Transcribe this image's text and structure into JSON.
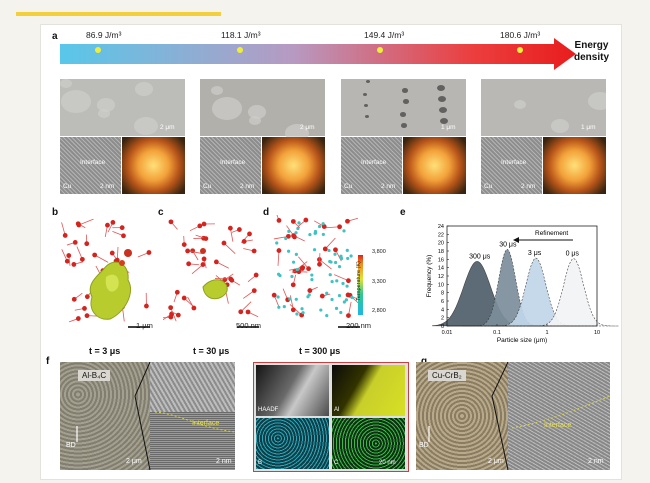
{
  "panel_a": {
    "label": "a",
    "energies": [
      "86.9 J/m³",
      "118.1 J/m³",
      "149.4 J/m³",
      "180.6 J/m³"
    ],
    "arrow_label_1": "Energy",
    "arrow_label_2": "density",
    "sem_scale": [
      "2 μm",
      "2 μm",
      "1 μm",
      "1 μm"
    ],
    "tem_labels": {
      "cu": "Cu",
      "interface": "Interface",
      "scale": "2 nm"
    }
  },
  "panel_b": {
    "label": "b",
    "scale": "1 μm",
    "time": "t = 3 μs"
  },
  "panel_c": {
    "label": "c",
    "scale": "500 nm",
    "time": "t = 30 μs"
  },
  "panel_d": {
    "label": "d",
    "scale": "200 nm",
    "time": "t = 300 μs",
    "colorbar_title": "Temperature (K)",
    "colorbar_ticks": [
      "3,800",
      "3,300",
      "2,800"
    ]
  },
  "panel_e": {
    "label": "e",
    "refinement": "Refinement",
    "ylabel": "Frequency (%)",
    "xlabel": "Particle size (μm)",
    "peak_labels": [
      "300 μs",
      "30 μs",
      "3 μs",
      "0 μs"
    ]
  },
  "chart_data": {
    "type": "area",
    "xlabel": "Particle size (μm)",
    "ylabel": "Frequency (%)",
    "xscale": "log",
    "xlim": [
      0.01,
      10
    ],
    "ylim": [
      0,
      24
    ],
    "xticks": [
      "0.01",
      "0.1",
      "1",
      "10"
    ],
    "yticks": [
      "0",
      "2",
      "4",
      "6",
      "8",
      "10",
      "12",
      "14",
      "16",
      "18",
      "20",
      "22",
      "24"
    ],
    "series": [
      {
        "name": "300 μs",
        "center": 0.04,
        "peak": 15.5,
        "sigma": 0.27,
        "color": "#4f5f6a"
      },
      {
        "name": "30 μs",
        "center": 0.16,
        "peak": 18.4,
        "sigma": 0.17,
        "color": "#7d8e9c"
      },
      {
        "name": "3 μs",
        "center": 0.6,
        "peak": 16.3,
        "sigma": 0.2,
        "color": "#c2d6ea"
      },
      {
        "name": "0 μs",
        "center": 3.4,
        "peak": 16.2,
        "sigma": 0.2,
        "color": "#f3f4f6"
      }
    ]
  },
  "panel_f": {
    "label": "f",
    "title": "Al-B₄C",
    "bd": "BD",
    "interface": "Interface",
    "scale_left": "2 μm",
    "scale_right": "2 nm",
    "eds_labels": [
      "HAADF",
      "Al",
      "B",
      "C"
    ],
    "eds_scale": "20 nm"
  },
  "panel_g": {
    "label": "g",
    "title": "Cu-CrB₂",
    "bd": "BD",
    "interface": "Interface",
    "scale_left": "2 μm",
    "scale_right": "2 nm"
  }
}
